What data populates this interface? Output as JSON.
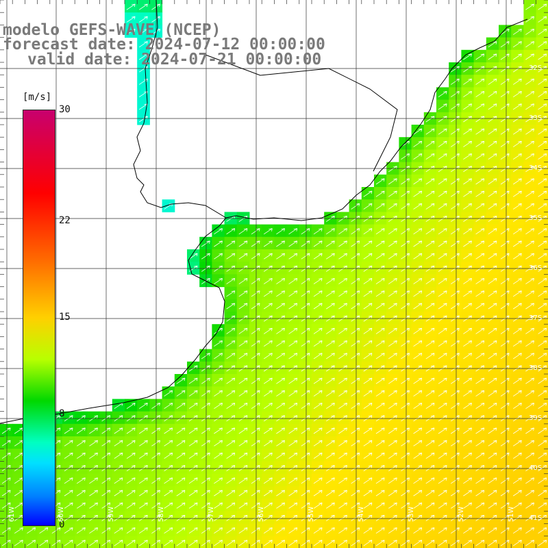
{
  "title": {
    "line1": "modelo GEFS-WAVE (NCEP)",
    "line2": "forecast date: 2024-07-12 00:00:00",
    "line3": "valid date: 2024-07-21 00:00:00"
  },
  "colorbar": {
    "unit": "[m/s]",
    "ticks": [
      {
        "label": "30",
        "value": 30
      },
      {
        "label": "22",
        "value": 22
      },
      {
        "label": "15",
        "value": 15
      },
      {
        "label": "8",
        "value": 8
      },
      {
        "label": "0",
        "value": 0
      }
    ]
  },
  "lat_labels": [
    "32S",
    "33S",
    "34S",
    "35S",
    "36S",
    "37S",
    "38S",
    "39S",
    "40S",
    "41S"
  ],
  "lon_labels": [
    "61W",
    "60W",
    "59W",
    "58W",
    "57W",
    "56W",
    "55W",
    "54W",
    "53W",
    "52W",
    "51W"
  ],
  "colors": {
    "land": "#ffffff",
    "grid": "#333333",
    "coast": "#000000",
    "arrow": "#ffffff"
  },
  "field": {
    "wind_direction": "southwest-to-northeast",
    "speed_range_ms": [
      8,
      17
    ]
  }
}
